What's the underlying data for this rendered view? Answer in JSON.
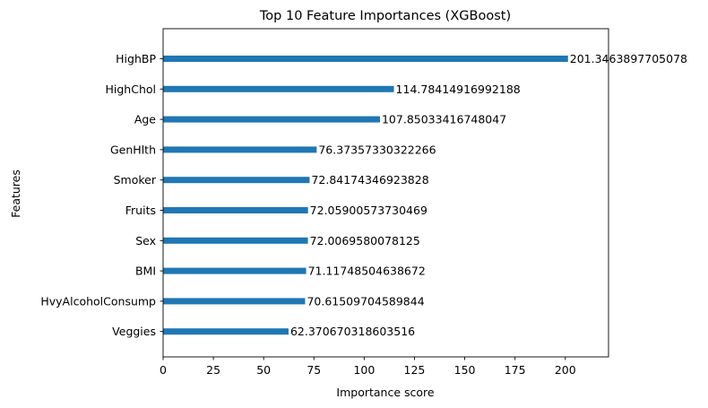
{
  "chart_data": {
    "type": "bar",
    "orientation": "horizontal",
    "title": "Top 10 Feature Importances (XGBoost)",
    "xlabel": "Importance score",
    "ylabel": "Features",
    "xlim": [
      0,
      221.5
    ],
    "xticks": [
      0,
      25,
      50,
      75,
      100,
      125,
      150,
      175,
      200
    ],
    "grid": false,
    "legend": "none",
    "bar_color": "#1f77b4",
    "categories": [
      "HighBP",
      "HighChol",
      "Age",
      "GenHlth",
      "Smoker",
      "Fruits",
      "Sex",
      "BMI",
      "HvyAlcoholConsump",
      "Veggies"
    ],
    "values": [
      201.3463897705078,
      114.78414916992188,
      107.85033416748047,
      76.37357330322266,
      72.84174346923828,
      72.05900573730469,
      72.0069580078125,
      71.11748504638672,
      70.61509704589844,
      62.370670318603516
    ],
    "value_labels": [
      "201.3463897705078",
      "114.78414916992188",
      "107.85033416748047",
      "76.37357330322266",
      "72.84174346923828",
      "72.05900573730469",
      "72.0069580078125",
      "71.11748504638672",
      "70.61509704589844",
      "62.370670318603516"
    ]
  }
}
